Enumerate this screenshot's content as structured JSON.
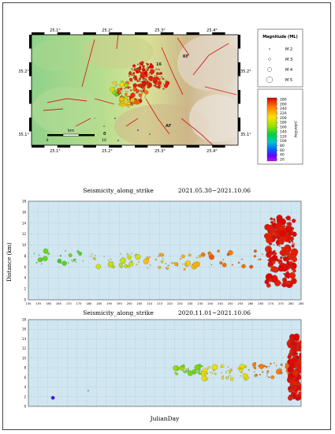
{
  "map": {
    "top_lon_labels": [
      "25.1°",
      "25.2°",
      "25.3°",
      "25.4°"
    ],
    "bottom_lon_labels": [
      "25.1°",
      "25.2°",
      "25.3°",
      "25.4°"
    ],
    "left_lat_labels": [
      "35.2°",
      "35.1°"
    ],
    "right_lat_labels": [
      "35.2°",
      "35.1°"
    ],
    "fault_labels": [
      "KF",
      "AF"
    ],
    "number_labels": [
      "16",
      "0"
    ],
    "scale_label": "km",
    "scale_ticks": [
      "0",
      "10"
    ]
  },
  "magnitude_legend": {
    "title": "Magnitude (ML)",
    "items": [
      "M 2",
      "M 3",
      "M 4",
      "M 5"
    ]
  },
  "colorbar": {
    "ticks": [
      "280",
      "260",
      "240",
      "220",
      "200",
      "180",
      "160",
      "140",
      "120",
      "100",
      "80",
      "60",
      "40",
      "20"
    ],
    "label": "JulianDay"
  },
  "chart_data": [
    {
      "type": "scatter",
      "title": "Seismicity_along_strike",
      "date_range": "2021.05.30~2021.10.06",
      "ylabel": "Distance (km)",
      "xlim": [
        150,
        285
      ],
      "ylim": [
        0,
        18
      ],
      "xticks": [
        150,
        155,
        160,
        165,
        170,
        175,
        180,
        185,
        190,
        195,
        200,
        205,
        210,
        215,
        220,
        225,
        230,
        235,
        240,
        245,
        250,
        255,
        260,
        265,
        270,
        275,
        280
      ],
      "yticks": [
        0,
        2,
        4,
        6,
        8,
        10,
        12,
        14,
        16,
        18
      ],
      "clusters": [
        {
          "x": [
            152,
            178
          ],
          "y": [
            6.5,
            9.0
          ],
          "count": 28,
          "color_day": 150
        },
        {
          "x": [
            180,
            205
          ],
          "y": [
            6.0,
            8.5
          ],
          "count": 34,
          "color_day": 185
        },
        {
          "x": [
            205,
            235
          ],
          "y": [
            5.5,
            8.5
          ],
          "count": 40,
          "color_day": 220
        },
        {
          "x": [
            235,
            268
          ],
          "y": [
            6.0,
            9.0
          ],
          "count": 26,
          "color_day": 250
        },
        {
          "x": [
            268,
            282
          ],
          "y": [
            2.5,
            15.0
          ],
          "count": 230,
          "color_day": 275
        }
      ]
    },
    {
      "type": "scatter",
      "title": "Seismicity_along_strike",
      "date_range": "2020.11.01~2021.10.06",
      "xlabel": "JulianDay",
      "xlim": [
        0,
        280
      ],
      "ylim": [
        0,
        18
      ],
      "clusters": [
        {
          "x": [
            25,
            30
          ],
          "y": [
            1.6,
            1.8
          ],
          "count": 1,
          "color_day": 45
        },
        {
          "x": [
            60,
            64
          ],
          "y": [
            3.2,
            3.5
          ],
          "count": 1,
          "color_day": 60
        },
        {
          "x": [
            150,
            180
          ],
          "y": [
            6.5,
            8.5
          ],
          "count": 30,
          "color_day": 160
        },
        {
          "x": [
            180,
            225
          ],
          "y": [
            5.5,
            8.5
          ],
          "count": 45,
          "color_day": 200
        },
        {
          "x": [
            225,
            268
          ],
          "y": [
            6.0,
            9.0
          ],
          "count": 35,
          "color_day": 245
        },
        {
          "x": [
            268,
            282
          ],
          "y": [
            1.5,
            14.5
          ],
          "count": 220,
          "color_day": 275
        }
      ]
    }
  ]
}
